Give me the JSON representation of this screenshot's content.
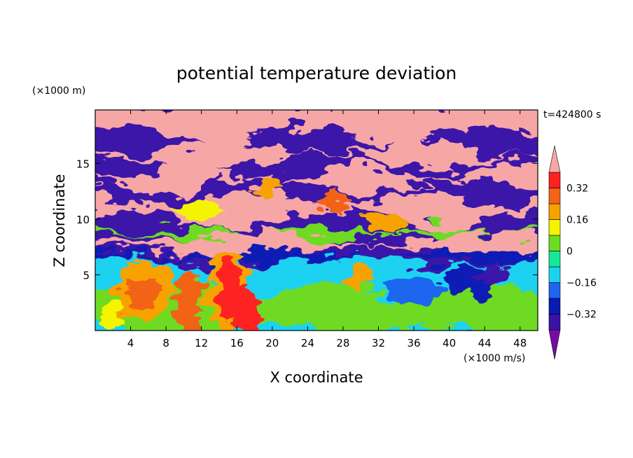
{
  "chart_data": {
    "type": "heatmap",
    "title": "potential temperature deviation",
    "time_label": "t=424800 s",
    "xlabel": "X coordinate",
    "ylabel": "Z coordinate",
    "x_unit": "(×1000 m/s)",
    "y_unit": "(×1000 m)",
    "xlim": [
      0,
      50
    ],
    "ylim": [
      0,
      19.8
    ],
    "x_ticks": [
      {
        "value": 4,
        "label": "4"
      },
      {
        "value": 8,
        "label": "8"
      },
      {
        "value": 12,
        "label": "12"
      },
      {
        "value": 16,
        "label": "16"
      },
      {
        "value": 20,
        "label": "20"
      },
      {
        "value": 24,
        "label": "24"
      },
      {
        "value": 28,
        "label": "28"
      },
      {
        "value": 32,
        "label": "32"
      },
      {
        "value": 36,
        "label": "36"
      },
      {
        "value": 40,
        "label": "40"
      },
      {
        "value": 44,
        "label": "44"
      },
      {
        "value": 48,
        "label": "48"
      }
    ],
    "y_ticks": [
      {
        "value": 5,
        "label": "5"
      },
      {
        "value": 10,
        "label": "10"
      },
      {
        "value": 15,
        "label": "15"
      }
    ],
    "colorbar": {
      "levels": [
        -0.4,
        -0.32,
        -0.24,
        -0.16,
        -0.08,
        0,
        0.08,
        0.16,
        0.24,
        0.32,
        0.4
      ],
      "colors": [
        "#7a0aa6",
        "#3a12a8",
        "#0a1ab4",
        "#1c66f0",
        "#1ad2f0",
        "#18e79a",
        "#6edb22",
        "#f4f400",
        "#f7a200",
        "#f26418",
        "#ff2020",
        "#f7a6a6"
      ],
      "tick_labels": [
        {
          "value": 0.32,
          "label": "0.32"
        },
        {
          "value": 0.16,
          "label": "0.16"
        },
        {
          "value": 0,
          "label": "0"
        },
        {
          "value": -0.16,
          "label": "−0.16"
        },
        {
          "value": -0.32,
          "label": "−0.32"
        }
      ],
      "extend": "both"
    }
  }
}
